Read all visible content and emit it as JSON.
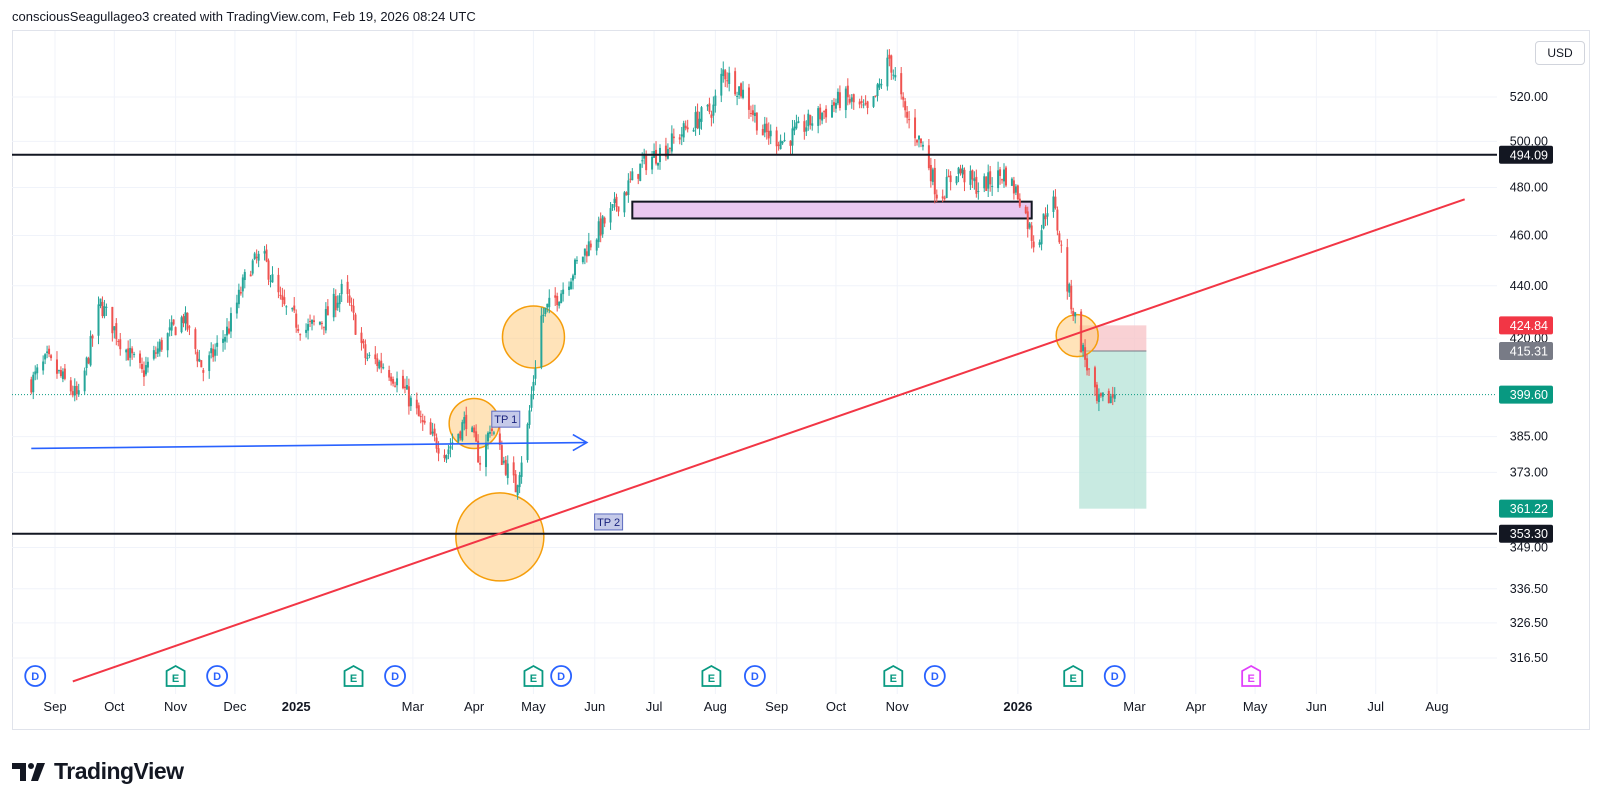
{
  "header": {
    "attribution": "consciousSeagullageo3 created with TradingView.com, Feb 19, 2026 08:24 UTC"
  },
  "currency_button": "USD",
  "brand": {
    "name": "TradingView"
  },
  "colors": {
    "up": "#26a69a",
    "down": "#ef5350",
    "trendline": "#f23645",
    "arrow": "#2962ff",
    "circle_fill": "#ffcc80",
    "circle_stroke": "#f59e0b",
    "rect_fill": "#e9c8f0",
    "stop_zone": "#f7c6c9",
    "target_zone": "#b5e3d7",
    "current_price": "#089981",
    "entry": "#787b86",
    "target": "#089981",
    "stop": "#f23645"
  },
  "chart_data": {
    "type": "candlestick",
    "series_name": "",
    "yscale": "log",
    "ylim": [
      310,
      545
    ],
    "x_ticks": [
      {
        "date": "2024-09-01",
        "label": "Sep",
        "bold": false
      },
      {
        "date": "2024-10-01",
        "label": "Oct",
        "bold": false
      },
      {
        "date": "2024-11-01",
        "label": "Nov",
        "bold": false
      },
      {
        "date": "2024-12-01",
        "label": "Dec",
        "bold": false
      },
      {
        "date": "2025-01-01",
        "label": "2025",
        "bold": true
      },
      {
        "date": "2025-03-01",
        "label": "Mar",
        "bold": false
      },
      {
        "date": "2025-04-01",
        "label": "Apr",
        "bold": false
      },
      {
        "date": "2025-05-01",
        "label": "May",
        "bold": false
      },
      {
        "date": "2025-06-01",
        "label": "Jun",
        "bold": false
      },
      {
        "date": "2025-07-01",
        "label": "Jul",
        "bold": false
      },
      {
        "date": "2025-08-01",
        "label": "Aug",
        "bold": false
      },
      {
        "date": "2025-09-01",
        "label": "Sep",
        "bold": false
      },
      {
        "date": "2025-10-01",
        "label": "Oct",
        "bold": false
      },
      {
        "date": "2025-11-01",
        "label": "Nov",
        "bold": false
      },
      {
        "date": "2026-01-01",
        "label": "2026",
        "bold": true
      },
      {
        "date": "2026-03-01",
        "label": "Mar",
        "bold": false
      },
      {
        "date": "2026-04-01",
        "label": "Apr",
        "bold": false
      },
      {
        "date": "2026-05-01",
        "label": "May",
        "bold": false
      },
      {
        "date": "2026-06-01",
        "label": "Jun",
        "bold": false
      },
      {
        "date": "2026-07-01",
        "label": "Jul",
        "bold": false
      },
      {
        "date": "2026-08-01",
        "label": "Aug",
        "bold": false
      }
    ],
    "y_ticks": [
      "520.00",
      "500.00",
      "480.00",
      "460.00",
      "440.00",
      "420.00",
      "385.00",
      "373.00",
      "349.00",
      "336.50",
      "326.50",
      "316.50"
    ],
    "price_path": [
      {
        "date": "2024-08-20",
        "close": 404
      },
      {
        "date": "2024-08-28",
        "close": 412
      },
      {
        "date": "2024-09-06",
        "close": 404
      },
      {
        "date": "2024-09-13",
        "close": 398
      },
      {
        "date": "2024-09-24",
        "close": 433
      },
      {
        "date": "2024-10-05",
        "close": 418
      },
      {
        "date": "2024-10-15",
        "close": 407
      },
      {
        "date": "2024-10-25",
        "close": 418
      },
      {
        "date": "2024-11-05",
        "close": 428
      },
      {
        "date": "2024-11-15",
        "close": 408
      },
      {
        "date": "2024-11-28",
        "close": 424
      },
      {
        "date": "2024-12-08",
        "close": 447
      },
      {
        "date": "2024-12-15",
        "close": 452
      },
      {
        "date": "2024-12-25",
        "close": 432
      },
      {
        "date": "2025-01-05",
        "close": 423
      },
      {
        "date": "2025-01-15",
        "close": 427
      },
      {
        "date": "2025-01-25",
        "close": 439
      },
      {
        "date": "2025-02-05",
        "close": 413
      },
      {
        "date": "2025-02-15",
        "close": 410
      },
      {
        "date": "2025-02-25",
        "close": 401
      },
      {
        "date": "2025-03-08",
        "close": 386
      },
      {
        "date": "2025-03-18",
        "close": 380
      },
      {
        "date": "2025-03-28",
        "close": 391
      },
      {
        "date": "2025-04-05",
        "close": 375
      },
      {
        "date": "2025-04-09",
        "close": 389
      },
      {
        "date": "2025-04-15",
        "close": 378
      },
      {
        "date": "2025-04-22",
        "close": 368
      },
      {
        "date": "2025-04-28",
        "close": 388
      },
      {
        "date": "2025-05-05",
        "close": 428
      },
      {
        "date": "2025-05-15",
        "close": 438
      },
      {
        "date": "2025-05-28",
        "close": 455
      },
      {
        "date": "2025-06-10",
        "close": 470
      },
      {
        "date": "2025-06-25",
        "close": 490
      },
      {
        "date": "2025-07-08",
        "close": 498
      },
      {
        "date": "2025-07-20",
        "close": 508
      },
      {
        "date": "2025-07-31",
        "close": 515
      },
      {
        "date": "2025-08-05",
        "close": 532
      },
      {
        "date": "2025-08-15",
        "close": 522
      },
      {
        "date": "2025-08-25",
        "close": 504
      },
      {
        "date": "2025-09-05",
        "close": 500
      },
      {
        "date": "2025-09-20",
        "close": 510
      },
      {
        "date": "2025-10-05",
        "close": 520
      },
      {
        "date": "2025-10-18",
        "close": 512
      },
      {
        "date": "2025-10-28",
        "close": 538
      },
      {
        "date": "2025-11-05",
        "close": 512
      },
      {
        "date": "2025-11-15",
        "close": 496
      },
      {
        "date": "2025-11-22",
        "close": 475
      },
      {
        "date": "2025-12-01",
        "close": 488
      },
      {
        "date": "2025-12-12",
        "close": 480
      },
      {
        "date": "2025-12-25",
        "close": 486
      },
      {
        "date": "2026-01-02",
        "close": 476
      },
      {
        "date": "2026-01-10",
        "close": 455
      },
      {
        "date": "2026-01-18",
        "close": 478
      },
      {
        "date": "2026-01-26",
        "close": 440
      },
      {
        "date": "2026-02-02",
        "close": 418
      },
      {
        "date": "2026-02-10",
        "close": 396
      },
      {
        "date": "2026-02-19",
        "close": 399.6
      }
    ],
    "price_labels": [
      {
        "value": 494.09,
        "text": "494.09",
        "kind": "level"
      },
      {
        "value": 424.84,
        "text": "424.84",
        "kind": "stop"
      },
      {
        "value": 415.31,
        "text": "415.31",
        "kind": "entry"
      },
      {
        "value": 399.6,
        "text": "399.60",
        "kind": "current"
      },
      {
        "value": 361.22,
        "text": "361.22",
        "kind": "target"
      },
      {
        "value": 353.3,
        "text": "353.30",
        "kind": "level"
      }
    ],
    "annotations": {
      "horizontal_levels": [
        494.09,
        353.3
      ],
      "trendline": {
        "from": {
          "date": "2024-09-10",
          "price": 310
        },
        "to": {
          "date": "2026-08-15",
          "price": 475
        }
      },
      "arrow": {
        "from": {
          "date": "2024-08-20",
          "price": 381
        },
        "to": {
          "date": "2025-05-28",
          "price": 383
        }
      },
      "zone_rect": {
        "from_date": "2025-06-20",
        "to_date": "2026-01-08",
        "top": 474,
        "bottom": 467
      },
      "circles": [
        {
          "date": "2025-05-01",
          "price": 420.5,
          "r": 31
        },
        {
          "date": "2025-04-01",
          "price": 389.5,
          "r": 25
        },
        {
          "date": "2025-04-14",
          "price": 352.3,
          "r": 44
        },
        {
          "date": "2026-01-31",
          "price": 421,
          "r": 21
        }
      ],
      "labels": [
        {
          "text": "TP 1",
          "date": "2025-04-17",
          "price": 391
        },
        {
          "text": "TP 2",
          "date": "2025-06-08",
          "price": 357
        }
      ],
      "position": {
        "from_date": "2026-02-01",
        "to_date": "2026-03-07",
        "entry": 415.31,
        "stop": 424.84,
        "target": 361.22
      }
    },
    "events": [
      {
        "date": "2024-08-22",
        "type": "D"
      },
      {
        "date": "2024-11-01",
        "type": "E"
      },
      {
        "date": "2024-11-22",
        "type": "D"
      },
      {
        "date": "2025-01-30",
        "type": "E"
      },
      {
        "date": "2025-02-20",
        "type": "D"
      },
      {
        "date": "2025-05-01",
        "type": "E"
      },
      {
        "date": "2025-05-15",
        "type": "D"
      },
      {
        "date": "2025-07-30",
        "type": "E"
      },
      {
        "date": "2025-08-21",
        "type": "D"
      },
      {
        "date": "2025-10-30",
        "type": "E"
      },
      {
        "date": "2025-11-20",
        "type": "D"
      },
      {
        "date": "2026-01-29",
        "type": "E"
      },
      {
        "date": "2026-02-19",
        "type": "D"
      },
      {
        "date": "2026-04-29",
        "type": "E"
      }
    ]
  }
}
